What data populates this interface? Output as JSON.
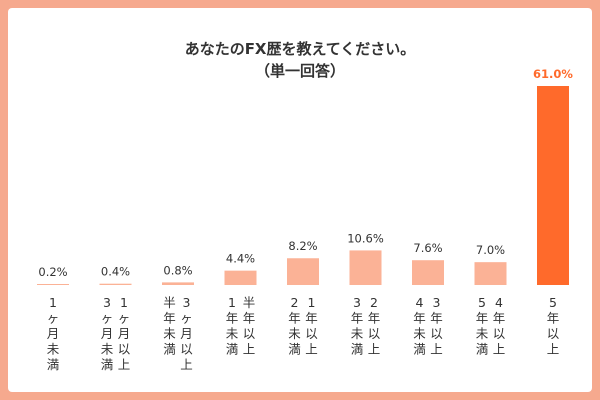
{
  "chart_data": {
    "type": "bar",
    "title": "あなたのFX歴を教えてください。",
    "subtitle": "（単一回答）",
    "categories": [
      [
        "1ヶ月未満"
      ],
      [
        "1ヶ月以上",
        "3ヶ月未満"
      ],
      [
        "3ヶ月以上",
        "半年未満"
      ],
      [
        "半年以上",
        "1年未満"
      ],
      [
        "1年以上",
        "2年未満"
      ],
      [
        "2年以上",
        "3年未満"
      ],
      [
        "3年以上",
        "4年未満"
      ],
      [
        "4年以上",
        "5年未満"
      ],
      [
        "5年以上"
      ]
    ],
    "values": [
      0.2,
      0.4,
      0.8,
      4.4,
      8.2,
      10.6,
      7.6,
      7.0,
      61.0
    ],
    "value_labels": [
      "0.2%",
      "0.4%",
      "0.8%",
      "4.4%",
      "8.2%",
      "10.6%",
      "7.6%",
      "7.0%",
      "61.0%"
    ],
    "ylim": [
      0,
      61
    ],
    "colors": {
      "bar": "#fbb296",
      "highlight": "#ff6a2b",
      "frame": "#f6a98e"
    },
    "highlight_index": 8
  }
}
